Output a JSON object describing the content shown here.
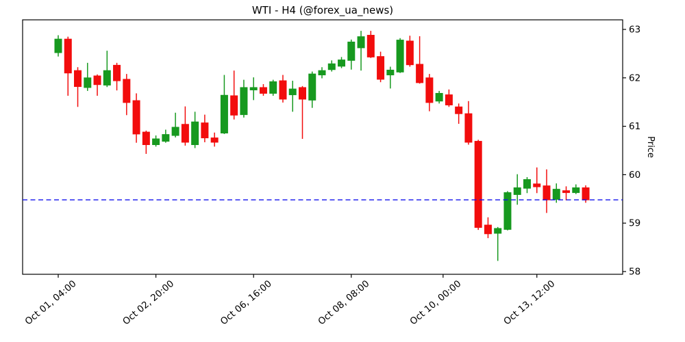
{
  "title": "WTI - H4 (@forex_ua_news)",
  "colors": {
    "up": "#17991f",
    "down": "#f20d0d",
    "hline": "#1111ee",
    "axis": "#000000",
    "background": "#ffffff"
  },
  "chart_data": {
    "type": "candlestick",
    "title": "WTI - H4 (@forex_ua_news)",
    "ylabel": "Price",
    "ylabel_side": "right",
    "grid": false,
    "legend": "none",
    "ylim": [
      57.94,
      63.2
    ],
    "yticks": [
      58,
      59,
      60,
      61,
      62,
      63
    ],
    "ytick_labels": [
      "58",
      "59",
      "60",
      "61",
      "62",
      "63"
    ],
    "xtick_labels": [
      "Oct 01, 04:00",
      "Oct 02, 20:00",
      "Oct 06, 16:00",
      "Oct 08, 08:00",
      "Oct 10, 00:00",
      "Oct 13, 12:00"
    ],
    "xtick_indices": [
      0,
      10,
      20,
      30,
      39.4,
      49
    ],
    "hline": {
      "value": 59.48,
      "style": "dashed",
      "color": "#1111ee"
    },
    "up_color": "#17991f",
    "down_color": "#f20d0d",
    "ohlc_note": "each candle is [open, high, low, close], H4 bars left-to-right",
    "candles": [
      [
        62.52,
        62.88,
        62.44,
        62.8
      ],
      [
        62.8,
        62.85,
        61.63,
        62.1
      ],
      [
        62.15,
        62.22,
        61.4,
        61.82
      ],
      [
        61.8,
        62.31,
        61.73,
        62.0
      ],
      [
        62.04,
        62.07,
        61.63,
        61.86
      ],
      [
        61.85,
        62.56,
        61.81,
        62.15
      ],
      [
        62.26,
        62.31,
        61.74,
        61.94
      ],
      [
        61.97,
        62.08,
        61.23,
        61.49
      ],
      [
        61.53,
        61.68,
        60.66,
        60.84
      ],
      [
        60.88,
        60.91,
        60.43,
        60.62
      ],
      [
        60.62,
        60.81,
        60.58,
        60.74
      ],
      [
        60.69,
        60.93,
        60.66,
        60.83
      ],
      [
        60.81,
        61.28,
        60.77,
        60.98
      ],
      [
        61.04,
        61.41,
        60.6,
        60.67
      ],
      [
        60.62,
        61.3,
        60.55,
        61.09
      ],
      [
        61.07,
        61.24,
        60.67,
        60.76
      ],
      [
        60.76,
        60.87,
        60.58,
        60.67
      ],
      [
        60.86,
        62.06,
        60.84,
        61.64
      ],
      [
        61.63,
        62.15,
        61.14,
        61.23
      ],
      [
        61.24,
        61.96,
        61.18,
        61.8
      ],
      [
        61.75,
        62.01,
        61.54,
        61.8
      ],
      [
        61.8,
        61.87,
        61.63,
        61.68
      ],
      [
        61.68,
        61.96,
        61.63,
        61.92
      ],
      [
        61.94,
        62.06,
        61.49,
        61.56
      ],
      [
        61.65,
        61.94,
        61.3,
        61.77
      ],
      [
        61.8,
        61.83,
        60.74,
        61.56
      ],
      [
        61.54,
        62.13,
        61.38,
        62.08
      ],
      [
        62.06,
        62.22,
        61.99,
        62.15
      ],
      [
        62.17,
        62.36,
        62.13,
        62.29
      ],
      [
        62.24,
        62.43,
        62.2,
        62.37
      ],
      [
        62.36,
        62.79,
        62.17,
        62.74
      ],
      [
        62.62,
        62.97,
        62.15,
        62.85
      ],
      [
        62.88,
        62.97,
        62.41,
        62.43
      ],
      [
        62.44,
        62.54,
        61.91,
        61.97
      ],
      [
        62.06,
        62.23,
        61.78,
        62.16
      ],
      [
        62.12,
        62.82,
        62.1,
        62.78
      ],
      [
        62.76,
        62.87,
        62.23,
        62.27
      ],
      [
        62.28,
        62.86,
        61.88,
        61.9
      ],
      [
        62.0,
        62.08,
        61.31,
        61.49
      ],
      [
        61.52,
        61.73,
        61.47,
        61.68
      ],
      [
        61.65,
        61.76,
        61.4,
        61.44
      ],
      [
        61.4,
        61.47,
        61.05,
        61.26
      ],
      [
        61.26,
        61.52,
        60.62,
        60.67
      ],
      [
        60.69,
        60.72,
        58.86,
        58.91
      ],
      [
        58.96,
        59.12,
        58.69,
        58.78
      ],
      [
        58.79,
        58.92,
        58.22,
        58.89
      ],
      [
        58.87,
        59.66,
        58.85,
        59.63
      ],
      [
        59.59,
        60.01,
        59.38,
        59.73
      ],
      [
        59.72,
        59.95,
        59.62,
        59.9
      ],
      [
        59.81,
        60.15,
        59.62,
        59.75
      ],
      [
        59.77,
        60.11,
        59.21,
        59.48
      ],
      [
        59.49,
        59.82,
        59.42,
        59.7
      ],
      [
        59.67,
        59.76,
        59.47,
        59.63
      ],
      [
        59.63,
        59.8,
        59.6,
        59.73
      ],
      [
        59.73,
        59.78,
        59.42,
        59.48
      ]
    ]
  }
}
